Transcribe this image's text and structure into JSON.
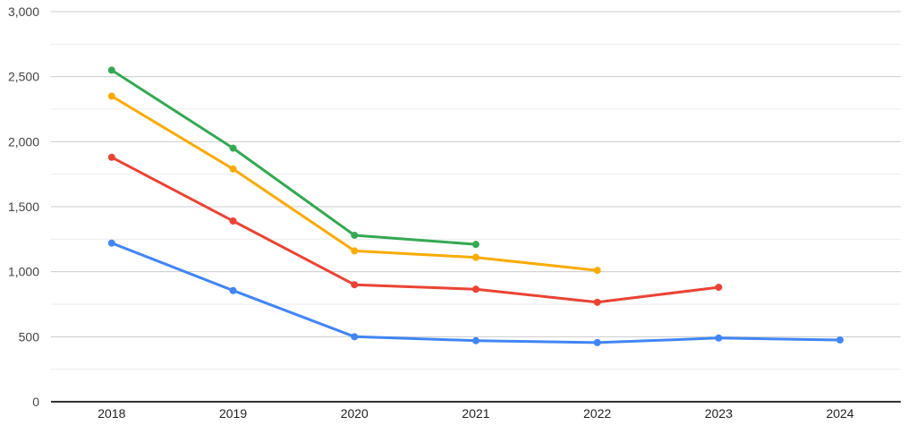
{
  "chart_data": {
    "type": "line",
    "title": "",
    "xlabel": "",
    "ylabel": "",
    "categories": [
      "2018",
      "2019",
      "2020",
      "2021",
      "2022",
      "2023",
      "2024"
    ],
    "series": [
      {
        "name": "green",
        "color": "#34A853",
        "values": [
          2550,
          1950,
          1280,
          1210,
          null,
          null,
          null
        ]
      },
      {
        "name": "orange",
        "color": "#F9AB00",
        "values": [
          2350,
          1790,
          1160,
          1110,
          1010,
          null,
          null
        ]
      },
      {
        "name": "red",
        "color": "#EA4335",
        "values": [
          1880,
          1390,
          900,
          865,
          765,
          880,
          null
        ]
      },
      {
        "name": "blue",
        "color": "#4285F4",
        "values": [
          1220,
          855,
          500,
          470,
          455,
          490,
          475
        ]
      }
    ],
    "ylim": [
      0,
      3000
    ],
    "y_major_step": 500,
    "y_minor_step": 250,
    "y_tick_labels": [
      "0",
      "500",
      "1,000",
      "1,500",
      "2,000",
      "2,500",
      "3,000"
    ],
    "grid": true,
    "legend_position": "none"
  },
  "colors": {
    "background": "#ffffff",
    "grid_major": "#cccccc",
    "grid_minor": "#ebebeb",
    "axis_line": "#333333",
    "y_tick_text": "#444444",
    "x_tick_text": "#1f1f1f"
  }
}
